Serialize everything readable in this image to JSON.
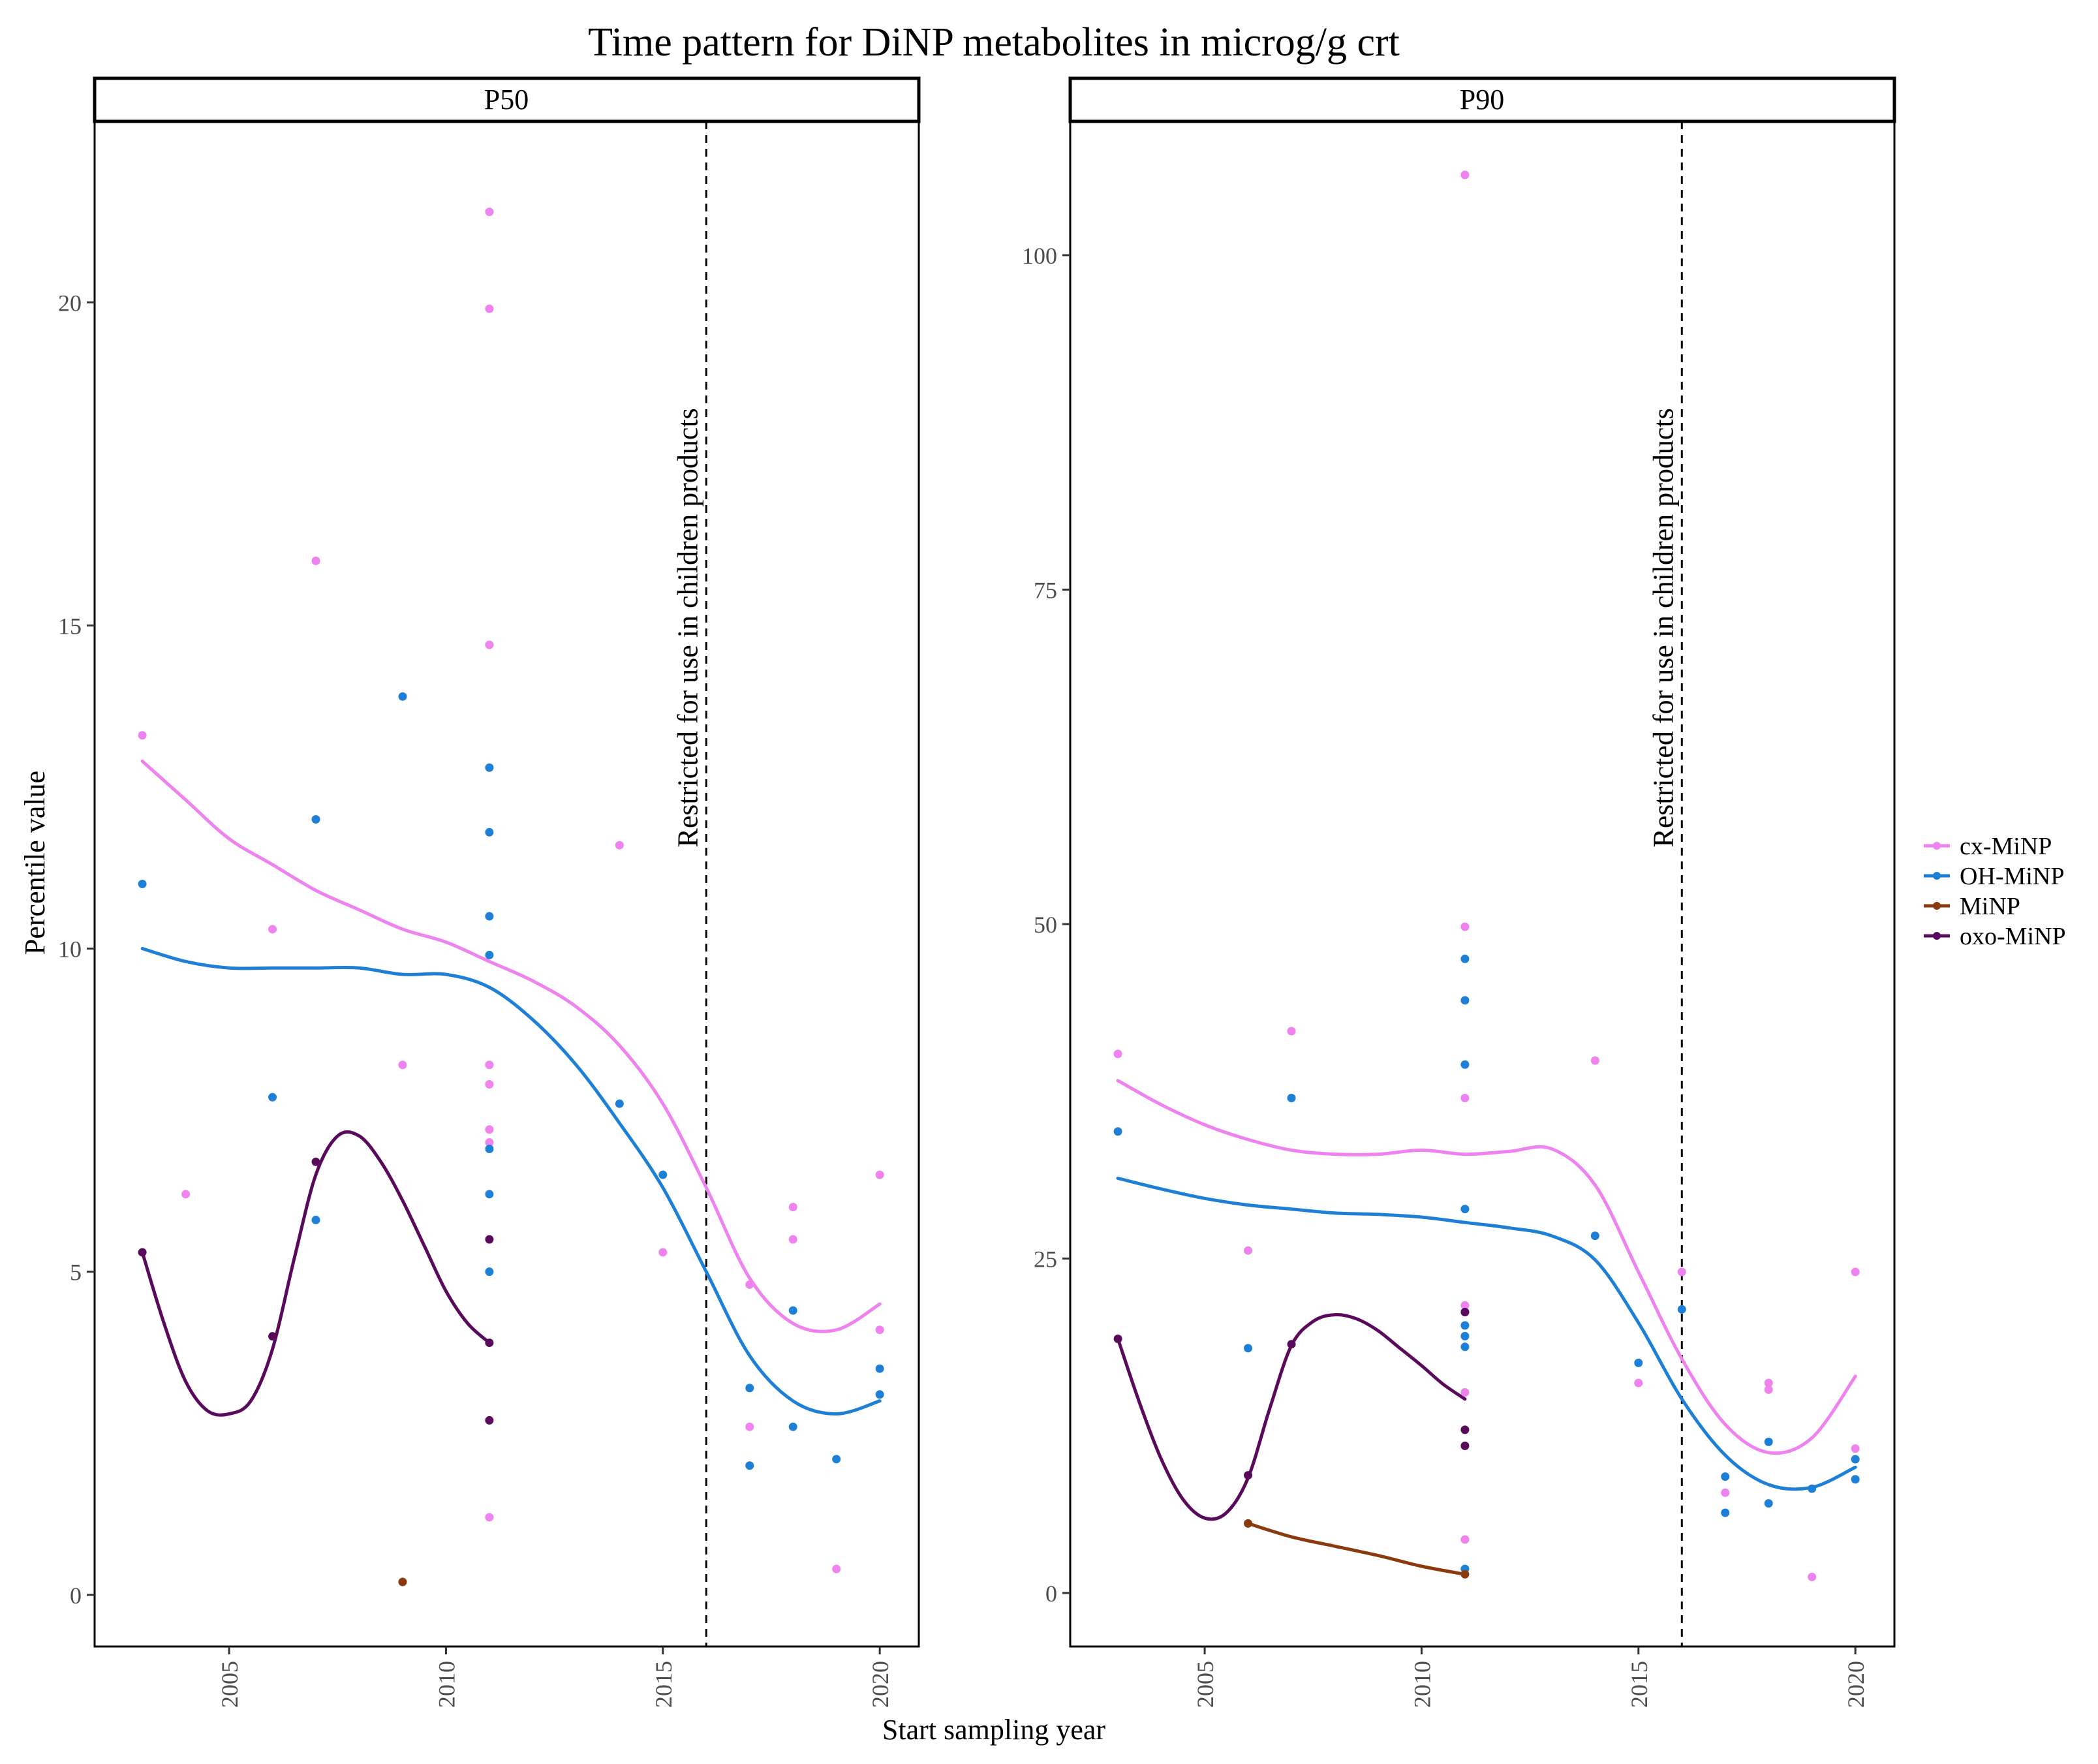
{
  "chart_data": {
    "type": "scatter",
    "title": "Time pattern for DiNP metabolites in microg/g crt",
    "xlabel": "Start sampling year",
    "ylabel": "Percentile value",
    "reference_line": {
      "x": 2016,
      "label": "Restricted for use in children products"
    },
    "legend": [
      {
        "name": "cx-MiNP",
        "color": "#ee82ee"
      },
      {
        "name": "OH-MiNP",
        "color": "#1e7fd6"
      },
      {
        "name": "MiNP",
        "color": "#8b3a0e"
      },
      {
        "name": "oxo-MiNP",
        "color": "#5a0a5a"
      }
    ],
    "panels": [
      {
        "name": "P50",
        "xlim": [
          2001.9,
          2020.9
        ],
        "ylim": [
          -0.8,
          22.8
        ],
        "xticks": [
          2005,
          2010,
          2015,
          2020
        ],
        "yticks": [
          0,
          5,
          10,
          15,
          20
        ],
        "series": [
          {
            "name": "cx-MiNP",
            "points": [
              [
                2003,
                13.3
              ],
              [
                2004,
                6.2
              ],
              [
                2006,
                10.3
              ],
              [
                2007,
                16.0
              ],
              [
                2009,
                8.2
              ],
              [
                2011,
                21.4
              ],
              [
                2011,
                19.9
              ],
              [
                2011,
                14.7
              ],
              [
                2011,
                8.2
              ],
              [
                2011,
                7.9
              ],
              [
                2011,
                7.2
              ],
              [
                2011,
                7.0
              ],
              [
                2011,
                1.2
              ],
              [
                2014,
                11.6
              ],
              [
                2015,
                5.3
              ],
              [
                2017,
                4.8
              ],
              [
                2017,
                2.6
              ],
              [
                2018,
                6.0
              ],
              [
                2018,
                5.5
              ],
              [
                2019,
                0.4
              ],
              [
                2020,
                6.5
              ],
              [
                2020,
                4.1
              ]
            ],
            "curve": [
              [
                2003,
                12.9
              ],
              [
                2004,
                12.3
              ],
              [
                2005,
                11.7
              ],
              [
                2006,
                11.3
              ],
              [
                2007,
                10.9
              ],
              [
                2008,
                10.6
              ],
              [
                2009,
                10.3
              ],
              [
                2010,
                10.1
              ],
              [
                2011,
                9.8
              ],
              [
                2012,
                9.5
              ],
              [
                2013,
                9.1
              ],
              [
                2014,
                8.5
              ],
              [
                2015,
                7.6
              ],
              [
                2016,
                6.3
              ],
              [
                2017,
                4.9
              ],
              [
                2018,
                4.2
              ],
              [
                2019,
                4.1
              ],
              [
                2020,
                4.5
              ]
            ]
          },
          {
            "name": "OH-MiNP",
            "points": [
              [
                2003,
                11.0
              ],
              [
                2006,
                7.7
              ],
              [
                2007,
                12.0
              ],
              [
                2007,
                5.8
              ],
              [
                2009,
                13.9
              ],
              [
                2011,
                12.8
              ],
              [
                2011,
                11.8
              ],
              [
                2011,
                10.5
              ],
              [
                2011,
                9.9
              ],
              [
                2011,
                6.9
              ],
              [
                2011,
                6.2
              ],
              [
                2011,
                5.0
              ],
              [
                2014,
                7.6
              ],
              [
                2015,
                6.5
              ],
              [
                2017,
                3.2
              ],
              [
                2017,
                2.0
              ],
              [
                2018,
                4.4
              ],
              [
                2018,
                2.6
              ],
              [
                2019,
                2.1
              ],
              [
                2020,
                3.5
              ],
              [
                2020,
                3.1
              ]
            ],
            "curve": [
              [
                2003,
                10.0
              ],
              [
                2004,
                9.8
              ],
              [
                2005,
                9.7
              ],
              [
                2006,
                9.7
              ],
              [
                2007,
                9.7
              ],
              [
                2008,
                9.7
              ],
              [
                2009,
                9.6
              ],
              [
                2010,
                9.6
              ],
              [
                2011,
                9.4
              ],
              [
                2012,
                8.9
              ],
              [
                2013,
                8.2
              ],
              [
                2014,
                7.3
              ],
              [
                2015,
                6.3
              ],
              [
                2016,
                5.0
              ],
              [
                2017,
                3.7
              ],
              [
                2018,
                3.0
              ],
              [
                2019,
                2.8
              ],
              [
                2020,
                3.0
              ]
            ]
          },
          {
            "name": "MiNP",
            "points": [
              [
                2009,
                0.2
              ]
            ],
            "curve": []
          },
          {
            "name": "oxo-MiNP",
            "points": [
              [
                2003,
                5.3
              ],
              [
                2006,
                4.0
              ],
              [
                2007,
                6.7
              ],
              [
                2011,
                5.5
              ],
              [
                2011,
                3.9
              ],
              [
                2011,
                2.7
              ]
            ],
            "curve": [
              [
                2003,
                5.3
              ],
              [
                2003.5,
                4.2
              ],
              [
                2004,
                3.3
              ],
              [
                2004.5,
                2.85
              ],
              [
                2005,
                2.8
              ],
              [
                2005.5,
                3.0
              ],
              [
                2006,
                3.8
              ],
              [
                2006.5,
                5.2
              ],
              [
                2007,
                6.5
              ],
              [
                2007.5,
                7.1
              ],
              [
                2008,
                7.1
              ],
              [
                2008.5,
                6.7
              ],
              [
                2009,
                6.1
              ],
              [
                2009.5,
                5.4
              ],
              [
                2010,
                4.7
              ],
              [
                2010.5,
                4.2
              ],
              [
                2011,
                3.9
              ]
            ]
          }
        ]
      },
      {
        "name": "P90",
        "xlim": [
          2001.9,
          2020.9
        ],
        "ylim": [
          -4,
          110
        ],
        "xticks": [
          2005,
          2010,
          2015,
          2020
        ],
        "yticks": [
          0,
          25,
          50,
          75,
          100
        ],
        "series": [
          {
            "name": "cx-MiNP",
            "points": [
              [
                2003,
                40.3
              ],
              [
                2006,
                25.6
              ],
              [
                2007,
                42.0
              ],
              [
                2011,
                106.0
              ],
              [
                2011,
                49.8
              ],
              [
                2011,
                37.0
              ],
              [
                2011,
                21.5
              ],
              [
                2011,
                15.0
              ],
              [
                2011,
                4.0
              ],
              [
                2014,
                39.8
              ],
              [
                2015,
                15.7
              ],
              [
                2016,
                24.0
              ],
              [
                2017,
                7.5
              ],
              [
                2018,
                15.7
              ],
              [
                2018,
                15.2
              ],
              [
                2019,
                1.2
              ],
              [
                2020,
                24.0
              ],
              [
                2020,
                10.8
              ]
            ],
            "curve": [
              [
                2003,
                38.3
              ],
              [
                2004,
                36.5
              ],
              [
                2005,
                35.0
              ],
              [
                2006,
                33.9
              ],
              [
                2007,
                33.1
              ],
              [
                2008,
                32.8
              ],
              [
                2009,
                32.8
              ],
              [
                2010,
                33.1
              ],
              [
                2011,
                32.8
              ],
              [
                2012,
                33.0
              ],
              [
                2013,
                33.2
              ],
              [
                2014,
                30.5
              ],
              [
                2015,
                24.0
              ],
              [
                2016,
                17.5
              ],
              [
                2017,
                12.6
              ],
              [
                2018,
                10.5
              ],
              [
                2019,
                11.6
              ],
              [
                2020,
                16.2
              ]
            ]
          },
          {
            "name": "OH-MiNP",
            "points": [
              [
                2003,
                34.5
              ],
              [
                2006,
                18.3
              ],
              [
                2007,
                37.0
              ],
              [
                2011,
                47.4
              ],
              [
                2011,
                44.3
              ],
              [
                2011,
                39.5
              ],
              [
                2011,
                28.7
              ],
              [
                2011,
                21.0
              ],
              [
                2011,
                20.0
              ],
              [
                2011,
                19.2
              ],
              [
                2011,
                18.4
              ],
              [
                2011,
                1.8
              ],
              [
                2014,
                26.7
              ],
              [
                2015,
                17.2
              ],
              [
                2016,
                21.2
              ],
              [
                2017,
                8.7
              ],
              [
                2017,
                6.0
              ],
              [
                2018,
                11.3
              ],
              [
                2018,
                6.7
              ],
              [
                2019,
                7.8
              ],
              [
                2020,
                10.0
              ],
              [
                2020,
                8.5
              ]
            ],
            "curve": [
              [
                2003,
                31.0
              ],
              [
                2004,
                30.2
              ],
              [
                2005,
                29.5
              ],
              [
                2006,
                29.0
              ],
              [
                2007,
                28.7
              ],
              [
                2008,
                28.4
              ],
              [
                2009,
                28.3
              ],
              [
                2010,
                28.1
              ],
              [
                2011,
                27.7
              ],
              [
                2012,
                27.3
              ],
              [
                2013,
                26.7
              ],
              [
                2014,
                24.9
              ],
              [
                2015,
                20.2
              ],
              [
                2016,
                14.5
              ],
              [
                2017,
                10.3
              ],
              [
                2018,
                8.1
              ],
              [
                2019,
                7.9
              ],
              [
                2020,
                9.4
              ]
            ]
          },
          {
            "name": "MiNP",
            "points": [
              [
                2006,
                5.2
              ],
              [
                2011,
                1.4
              ]
            ],
            "curve": [
              [
                2006,
                5.2
              ],
              [
                2007,
                4.2
              ],
              [
                2008,
                3.5
              ],
              [
                2009,
                2.8
              ],
              [
                2010,
                2.0
              ],
              [
                2011,
                1.4
              ]
            ]
          },
          {
            "name": "oxo-MiNP",
            "points": [
              [
                2003,
                19.0
              ],
              [
                2006,
                8.8
              ],
              [
                2007,
                18.6
              ],
              [
                2011,
                21.0
              ],
              [
                2011,
                12.2
              ],
              [
                2011,
                11.0
              ]
            ],
            "curve": [
              [
                2003,
                19.0
              ],
              [
                2003.5,
                14.2
              ],
              [
                2004,
                10.0
              ],
              [
                2004.5,
                7.0
              ],
              [
                2005,
                5.6
              ],
              [
                2005.5,
                6.0
              ],
              [
                2006,
                8.6
              ],
              [
                2006.5,
                13.8
              ],
              [
                2007,
                18.5
              ],
              [
                2007.5,
                20.3
              ],
              [
                2008,
                20.8
              ],
              [
                2008.5,
                20.5
              ],
              [
                2009,
                19.6
              ],
              [
                2009.5,
                18.3
              ],
              [
                2010,
                17.0
              ],
              [
                2010.5,
                15.6
              ],
              [
                2011,
                14.5
              ]
            ]
          }
        ]
      }
    ]
  }
}
